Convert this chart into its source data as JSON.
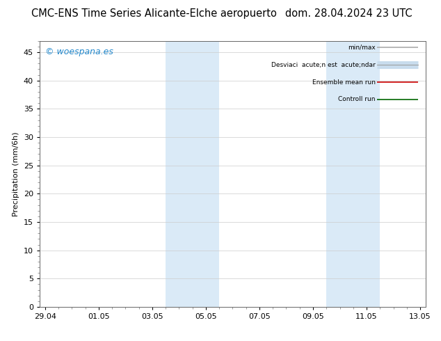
{
  "title": "CMC-ENS Time Series Alicante-Elche aeropuerto",
  "date_label": "dom. 28.04.2024 23 UTC",
  "ylabel": "Precipitation (mm/6h)",
  "watermark": "© woespana.es",
  "x_ticks": [
    "29.04",
    "01.05",
    "03.05",
    "05.05",
    "07.05",
    "09.05",
    "11.05",
    "13.05"
  ],
  "x_values": [
    0,
    2,
    4,
    6,
    8,
    10,
    12,
    14
  ],
  "ylim": [
    0,
    47
  ],
  "yticks": [
    0,
    5,
    10,
    15,
    20,
    25,
    30,
    35,
    40,
    45
  ],
  "xlim": [
    -0.2,
    14.2
  ],
  "shaded_regions": [
    {
      "xmin": 4.5,
      "xmax": 5.5,
      "color": "#daeaf7"
    },
    {
      "xmin": 5.5,
      "xmax": 6.5,
      "color": "#daeaf7"
    },
    {
      "xmin": 10.5,
      "xmax": 11.5,
      "color": "#daeaf7"
    },
    {
      "xmin": 11.5,
      "xmax": 12.5,
      "color": "#daeaf7"
    }
  ],
  "legend_entries": [
    {
      "label": "min/max",
      "color": "#aaaaaa",
      "lw": 1.2
    },
    {
      "label": "Desviaci  acute;n est  acute;ndar",
      "color": "#c8dced",
      "lw": 7
    },
    {
      "label": "Ensemble mean run",
      "color": "#cc0000",
      "lw": 1.2
    },
    {
      "label": "Controll run",
      "color": "#006600",
      "lw": 1.2
    }
  ],
  "bg_color": "#ffffff",
  "plot_bg": "#ffffff",
  "grid_color": "#cccccc",
  "title_fontsize": 10.5,
  "axis_fontsize": 8,
  "tick_fontsize": 8,
  "watermark_color": "#2288cc",
  "watermark_fontsize": 9
}
